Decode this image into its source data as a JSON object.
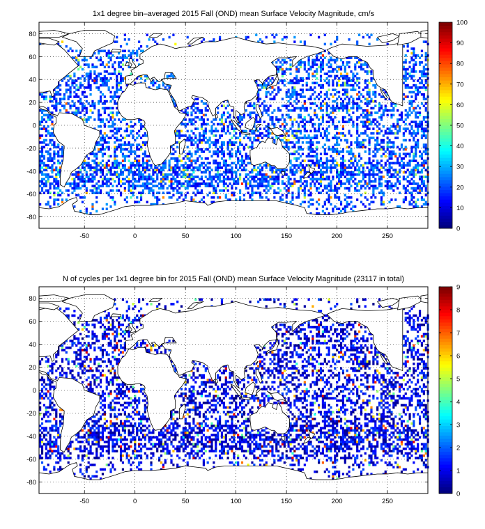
{
  "chart_data": [
    {
      "type": "heatmap",
      "title": "1x1 degree bin–averaged 2015 Fall (OND) mean Surface Velocity Magnitude, cm/s",
      "xlim": [
        -95,
        290
      ],
      "ylim": [
        -90,
        90
      ],
      "xticks": [
        -50,
        0,
        50,
        100,
        150,
        200,
        250
      ],
      "yticks": [
        80,
        60,
        40,
        20,
        0,
        -20,
        -40,
        -60,
        -80
      ],
      "grid": "dotted",
      "colorbar": {
        "range": [
          0,
          100
        ],
        "ticks": [
          0,
          10,
          20,
          30,
          40,
          50,
          60,
          70,
          80,
          90,
          100
        ],
        "colormap": "jet"
      },
      "field_levels": {
        "background": 20,
        "spread": 10,
        "hot_spot": 85
      }
    },
    {
      "type": "heatmap",
      "title": "N of cycles per 1x1 degree bin for 2015 Fall (OND) mean Surface Velocity Magnitude (23117 in total)",
      "xlim": [
        -95,
        290
      ],
      "ylim": [
        -90,
        90
      ],
      "xticks": [
        -50,
        0,
        50,
        100,
        150,
        200,
        250
      ],
      "yticks": [
        80,
        60,
        40,
        20,
        0,
        -20,
        -40,
        -60,
        -80
      ],
      "grid": "dotted",
      "total_cycles": 23117,
      "colorbar": {
        "range": [
          0,
          9
        ],
        "ticks": [
          0,
          1,
          2,
          3,
          4,
          5,
          6,
          7,
          8,
          9
        ],
        "colormap": "jet"
      },
      "field_levels": {
        "background": 1,
        "spread": 1,
        "hot_spot": 9
      }
    }
  ],
  "colors": {
    "land": "#ffffff",
    "coast": "#000000",
    "grid": "#000000",
    "jet_low": "#00008f",
    "jet_high": "#800000"
  }
}
